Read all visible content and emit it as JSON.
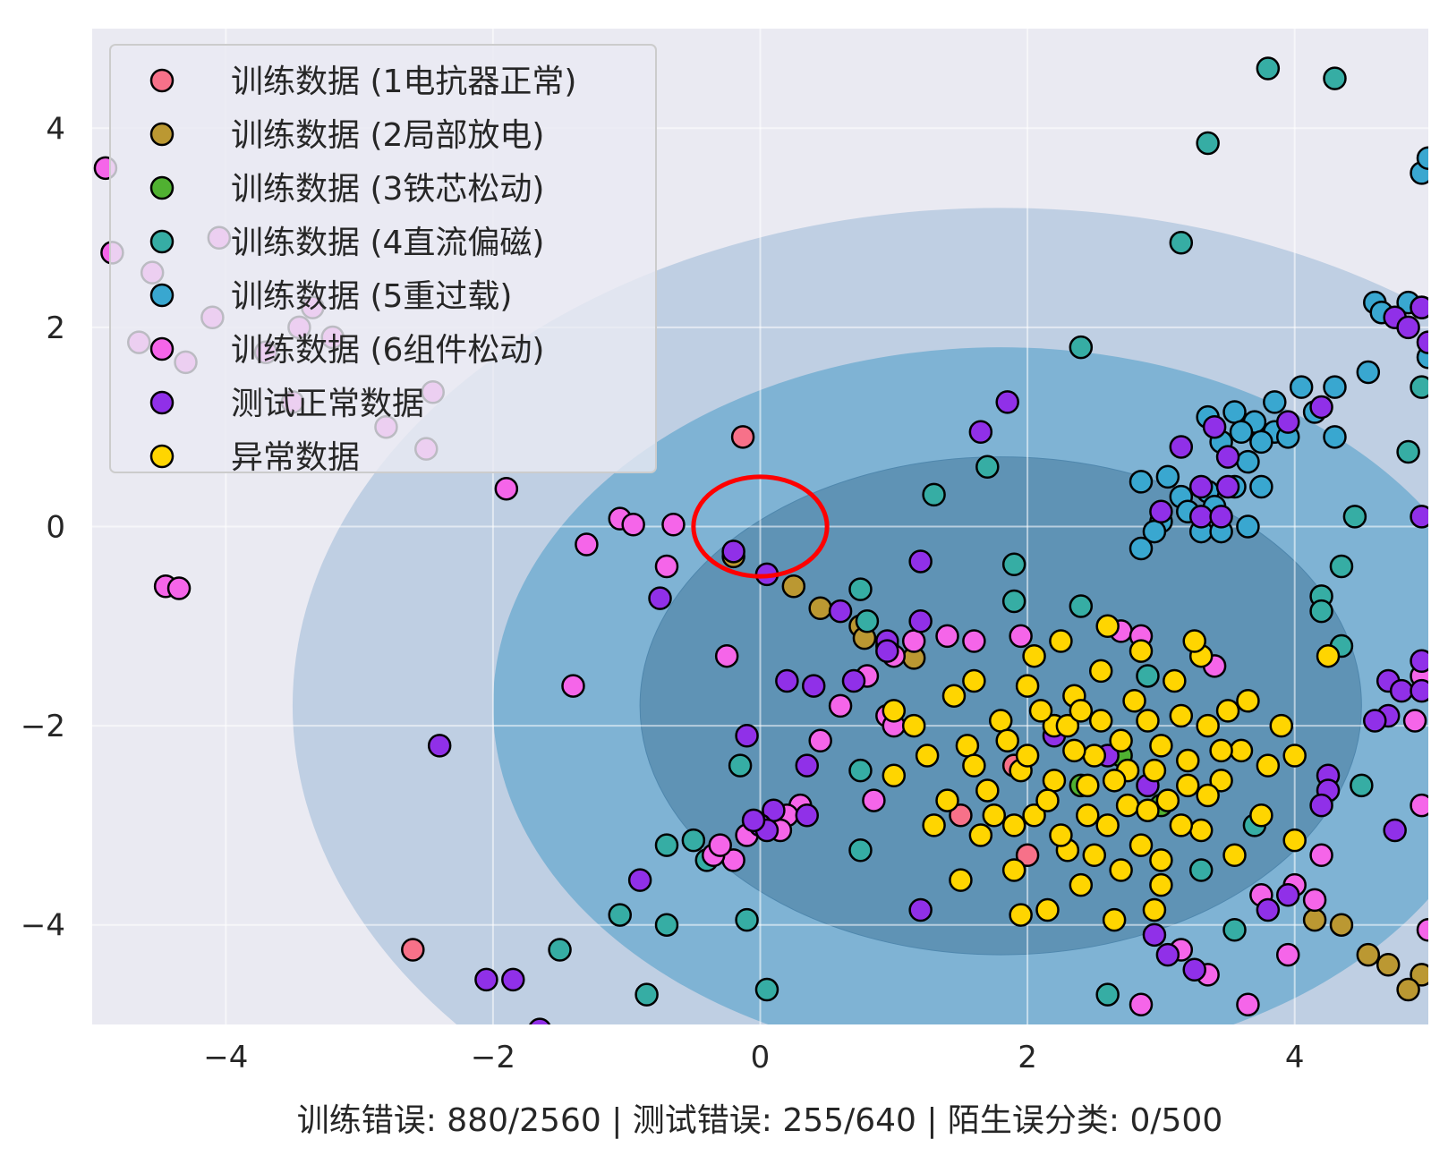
{
  "chart_data": {
    "type": "scatter",
    "title": "",
    "xlabel": "训练错误: 880/2560 | 测试错误: 255/640 | 陌生误分类: 0/500",
    "ylabel": "",
    "xlim": [
      -5,
      5
    ],
    "ylim": [
      -5,
      5
    ],
    "xticks": [
      -4,
      -2,
      0,
      2,
      4
    ],
    "yticks": [
      -4,
      -2,
      0,
      2,
      4
    ],
    "xtick_labels": [
      "−4",
      "−2",
      "0",
      "2",
      "4"
    ],
    "ytick_labels": [
      "−4",
      "−2",
      "0",
      "2",
      "4"
    ],
    "grid": true,
    "legend_position": "top-left",
    "background_color": "#eaeaf2",
    "decision_contours": {
      "center": [
        1.8,
        -1.8
      ],
      "levels": [
        {
          "rx": 5.3,
          "ry": 5.0,
          "color": "#bfcfe3"
        },
        {
          "rx": 3.8,
          "ry": 3.6,
          "color": "#7fb3d4"
        },
        {
          "rx": 2.7,
          "ry": 2.5,
          "color": "#5f93b5"
        }
      ]
    },
    "highlight_circle": {
      "center": [
        0,
        0
      ],
      "rx": 0.5,
      "ry": 0.5,
      "color": "#ff0000"
    },
    "series": [
      {
        "name": "训练数据 (1电抗器正常)",
        "color": "#f77189",
        "points": [
          [
            -0.13,
            0.9
          ],
          [
            -2.6,
            -4.25
          ],
          [
            1.5,
            -2.9
          ],
          [
            2.0,
            -3.3
          ],
          [
            1.9,
            -2.4
          ]
        ]
      },
      {
        "name": "训练数据 (2局部放电)",
        "color": "#bb9832",
        "points": [
          [
            -0.2,
            -0.3
          ],
          [
            0.25,
            -0.6
          ],
          [
            0.45,
            -0.82
          ],
          [
            0.75,
            -1.0
          ],
          [
            0.78,
            -1.12
          ],
          [
            0.95,
            -1.2
          ],
          [
            1.15,
            -1.32
          ],
          [
            4.15,
            -3.95
          ],
          [
            4.35,
            -4.0
          ],
          [
            4.55,
            -4.3
          ],
          [
            4.7,
            -4.4
          ],
          [
            4.95,
            -4.5
          ],
          [
            4.85,
            -4.65
          ]
        ]
      },
      {
        "name": "训练数据 (3铁芯松动)",
        "color": "#50b131",
        "points": [
          [
            2.2,
            -2.0
          ],
          [
            2.4,
            -2.6
          ],
          [
            2.7,
            -2.3
          ],
          [
            3.0,
            -2.8
          ]
        ]
      },
      {
        "name": "训练数据 (4直流偏磁)",
        "color": "#36ada4",
        "points": [
          [
            3.8,
            4.6
          ],
          [
            4.3,
            4.5
          ],
          [
            3.35,
            3.85
          ],
          [
            3.15,
            2.85
          ],
          [
            2.4,
            1.8
          ],
          [
            1.7,
            0.6
          ],
          [
            1.3,
            0.32
          ],
          [
            1.9,
            -0.38
          ],
          [
            0.75,
            -0.63
          ],
          [
            0.8,
            -0.95
          ],
          [
            1.9,
            -0.75
          ],
          [
            2.4,
            -0.8
          ],
          [
            4.2,
            -0.7
          ],
          [
            4.2,
            -0.85
          ],
          [
            4.35,
            -0.4
          ],
          [
            4.35,
            -1.2
          ],
          [
            4.45,
            0.1
          ],
          [
            4.85,
            0.75
          ],
          [
            4.95,
            1.4
          ],
          [
            -0.7,
            -3.2
          ],
          [
            -0.5,
            -3.15
          ],
          [
            -0.4,
            -3.35
          ],
          [
            -0.15,
            -2.4
          ],
          [
            -0.1,
            -3.95
          ],
          [
            -0.7,
            -4.0
          ],
          [
            -1.05,
            -3.9
          ],
          [
            -0.85,
            -4.7
          ],
          [
            -1.5,
            -4.25
          ],
          [
            0.05,
            -4.65
          ],
          [
            0.75,
            -2.45
          ],
          [
            0.75,
            -3.25
          ],
          [
            2.6,
            -4.7
          ],
          [
            3.55,
            -4.05
          ],
          [
            4.5,
            -2.6
          ],
          [
            3.3,
            -3.45
          ],
          [
            2.9,
            -1.5
          ],
          [
            3.7,
            -3.0
          ]
        ]
      },
      {
        "name": "训练数据 (5重过载)",
        "color": "#39a7d0",
        "points": [
          [
            4.95,
            3.55
          ],
          [
            5.0,
            3.7
          ],
          [
            4.6,
            2.25
          ],
          [
            4.65,
            2.15
          ],
          [
            4.85,
            2.25
          ],
          [
            4.95,
            2.2
          ],
          [
            5.0,
            1.7
          ],
          [
            4.55,
            1.55
          ],
          [
            4.05,
            1.4
          ],
          [
            4.15,
            1.15
          ],
          [
            4.3,
            1.4
          ],
          [
            4.3,
            0.9
          ],
          [
            3.55,
            1.15
          ],
          [
            3.35,
            1.1
          ],
          [
            3.85,
            1.25
          ],
          [
            3.7,
            1.05
          ],
          [
            3.6,
            0.95
          ],
          [
            3.45,
            0.85
          ],
          [
            3.65,
            0.65
          ],
          [
            3.85,
            0.95
          ],
          [
            3.95,
            0.9
          ],
          [
            3.75,
            0.85
          ],
          [
            2.85,
            0.45
          ],
          [
            3.05,
            0.5
          ],
          [
            3.15,
            0.3
          ],
          [
            3.35,
            0.35
          ],
          [
            3.55,
            0.4
          ],
          [
            3.75,
            0.4
          ],
          [
            3.0,
            0.05
          ],
          [
            2.95,
            -0.05
          ],
          [
            3.2,
            0.15
          ],
          [
            3.3,
            -0.05
          ],
          [
            3.45,
            -0.05
          ],
          [
            3.65,
            0.0
          ],
          [
            3.4,
            0.2
          ],
          [
            2.85,
            -0.22
          ]
        ]
      },
      {
        "name": "训练数据 (6组件松动)",
        "color": "#f565e9",
        "points": [
          [
            -4.9,
            3.6
          ],
          [
            -4.85,
            2.75
          ],
          [
            -4.55,
            2.55
          ],
          [
            -4.05,
            2.9
          ],
          [
            -4.1,
            2.1
          ],
          [
            -3.45,
            2.0
          ],
          [
            -3.35,
            2.2
          ],
          [
            -4.65,
            1.85
          ],
          [
            -3.5,
            1.25
          ],
          [
            -3.7,
            1.75
          ],
          [
            -3.2,
            1.9
          ],
          [
            -4.3,
            1.65
          ],
          [
            -2.8,
            1.0
          ],
          [
            -2.45,
            1.35
          ],
          [
            -2.5,
            0.78
          ],
          [
            -1.9,
            0.38
          ],
          [
            -1.05,
            0.08
          ],
          [
            -0.95,
            0.02
          ],
          [
            -0.65,
            0.02
          ],
          [
            -0.7,
            -0.4
          ],
          [
            -1.3,
            -0.18
          ],
          [
            -4.45,
            -0.6
          ],
          [
            -4.35,
            -0.62
          ],
          [
            -1.4,
            -1.6
          ],
          [
            -0.25,
            -1.3
          ],
          [
            0.45,
            -2.15
          ],
          [
            0.6,
            -1.8
          ],
          [
            0.8,
            -1.5
          ],
          [
            1.15,
            -1.15
          ],
          [
            1.0,
            -1.3
          ],
          [
            1.4,
            -1.1
          ],
          [
            1.6,
            -1.15
          ],
          [
            1.95,
            -1.1
          ],
          [
            0.95,
            -1.9
          ],
          [
            1.0,
            -2.0
          ],
          [
            0.85,
            -2.75
          ],
          [
            0.3,
            -2.8
          ],
          [
            0.2,
            -2.9
          ],
          [
            0.15,
            -3.05
          ],
          [
            -0.1,
            -3.1
          ],
          [
            -0.2,
            -3.35
          ],
          [
            -0.35,
            -3.3
          ],
          [
            -0.3,
            -3.2
          ],
          [
            3.15,
            -4.25
          ],
          [
            3.35,
            -4.5
          ],
          [
            3.65,
            -4.8
          ],
          [
            3.95,
            -4.3
          ],
          [
            3.75,
            -3.7
          ],
          [
            4.0,
            -3.6
          ],
          [
            4.2,
            -3.3
          ],
          [
            4.15,
            -3.75
          ],
          [
            4.9,
            -1.95
          ],
          [
            4.95,
            -2.8
          ],
          [
            5.0,
            -4.05
          ],
          [
            4.95,
            -1.5
          ],
          [
            2.85,
            -4.8
          ],
          [
            2.7,
            -1.05
          ],
          [
            2.85,
            -1.1
          ],
          [
            3.4,
            -1.4
          ]
        ]
      },
      {
        "name": "测试正常数据",
        "color": "#9030e8",
        "points": [
          [
            1.85,
            1.25
          ],
          [
            1.65,
            0.95
          ],
          [
            -0.2,
            -0.25
          ],
          [
            0.05,
            -0.48
          ],
          [
            0.6,
            -0.85
          ],
          [
            1.2,
            -0.35
          ],
          [
            1.2,
            -0.95
          ],
          [
            0.95,
            -1.15
          ],
          [
            0.95,
            -1.25
          ],
          [
            0.7,
            -1.55
          ],
          [
            0.4,
            -1.6
          ],
          [
            0.2,
            -1.55
          ],
          [
            -0.1,
            -2.1
          ],
          [
            -0.75,
            -0.72
          ],
          [
            0.35,
            -2.4
          ],
          [
            0.35,
            -2.9
          ],
          [
            0.1,
            -2.85
          ],
          [
            0.0,
            -3.0
          ],
          [
            0.05,
            -3.05
          ],
          [
            -0.05,
            -2.95
          ],
          [
            -0.9,
            -3.55
          ],
          [
            -2.4,
            -2.2
          ],
          [
            -2.05,
            -4.55
          ],
          [
            -1.85,
            -4.55
          ],
          [
            -1.65,
            -5.05
          ],
          [
            1.2,
            -3.85
          ],
          [
            2.95,
            -4.1
          ],
          [
            3.05,
            -4.3
          ],
          [
            3.25,
            -4.45
          ],
          [
            3.8,
            -3.85
          ],
          [
            3.95,
            -3.7
          ],
          [
            4.25,
            -2.5
          ],
          [
            4.25,
            -2.65
          ],
          [
            4.2,
            -2.8
          ],
          [
            4.75,
            -3.05
          ],
          [
            4.7,
            -1.55
          ],
          [
            4.8,
            -1.65
          ],
          [
            4.7,
            -1.9
          ],
          [
            4.6,
            -1.95
          ],
          [
            3.15,
            0.8
          ],
          [
            3.4,
            1.0
          ],
          [
            3.5,
            0.7
          ],
          [
            3.3,
            0.4
          ],
          [
            3.5,
            0.4
          ],
          [
            3.0,
            0.15
          ],
          [
            3.3,
            0.1
          ],
          [
            3.45,
            0.1
          ],
          [
            4.2,
            1.2
          ],
          [
            3.95,
            1.05
          ],
          [
            4.75,
            2.1
          ],
          [
            4.85,
            2.0
          ],
          [
            4.95,
            2.2
          ],
          [
            5.0,
            1.85
          ],
          [
            4.95,
            0.1
          ],
          [
            4.95,
            -1.35
          ],
          [
            4.95,
            -1.65
          ],
          [
            2.2,
            -2.1
          ],
          [
            2.6,
            -2.3
          ],
          [
            2.9,
            -2.6
          ]
        ]
      },
      {
        "name": "异常数据",
        "color": "#ffd500",
        "points": [
          [
            2.5,
            -2.3
          ],
          [
            2.45,
            -2.6
          ],
          [
            2.2,
            -2.0
          ],
          [
            2.75,
            -2.45
          ],
          [
            2.9,
            -1.95
          ],
          [
            3.05,
            -2.75
          ],
          [
            1.95,
            -2.45
          ],
          [
            2.6,
            -3.0
          ],
          [
            2.35,
            -1.7
          ],
          [
            3.2,
            -2.35
          ],
          [
            1.8,
            -1.95
          ],
          [
            2.05,
            -2.9
          ],
          [
            2.85,
            -3.2
          ],
          [
            3.35,
            -2.0
          ],
          [
            2.0,
            -1.6
          ],
          [
            1.7,
            -2.65
          ],
          [
            3.45,
            -2.55
          ],
          [
            2.55,
            -1.45
          ],
          [
            3.1,
            -1.55
          ],
          [
            1.55,
            -2.2
          ],
          [
            2.3,
            -3.25
          ],
          [
            3.3,
            -3.05
          ],
          [
            1.65,
            -3.1
          ],
          [
            1.9,
            -3.45
          ],
          [
            2.7,
            -3.45
          ],
          [
            3.5,
            -1.85
          ],
          [
            1.45,
            -1.7
          ],
          [
            2.05,
            -1.3
          ],
          [
            3.3,
            -1.3
          ],
          [
            3.6,
            -2.25
          ],
          [
            1.4,
            -2.75
          ],
          [
            2.4,
            -3.6
          ],
          [
            3.0,
            -3.6
          ],
          [
            1.6,
            -1.55
          ],
          [
            3.65,
            -1.75
          ],
          [
            1.25,
            -2.3
          ],
          [
            2.25,
            -1.15
          ],
          [
            2.85,
            -1.25
          ],
          [
            3.55,
            -3.3
          ],
          [
            1.5,
            -3.55
          ],
          [
            2.15,
            -3.85
          ],
          [
            2.95,
            -3.85
          ],
          [
            1.3,
            -3.0
          ],
          [
            3.8,
            -2.4
          ],
          [
            3.75,
            -2.9
          ],
          [
            1.15,
            -2.0
          ],
          [
            2.6,
            -1.0
          ],
          [
            3.25,
            -1.15
          ],
          [
            1.95,
            -3.9
          ],
          [
            2.65,
            -3.95
          ],
          [
            1.0,
            -2.5
          ],
          [
            3.9,
            -2.0
          ],
          [
            3.0,
            -2.2
          ],
          [
            2.2,
            -2.55
          ],
          [
            2.7,
            -2.15
          ],
          [
            2.45,
            -2.9
          ],
          [
            3.15,
            -3.0
          ],
          [
            1.85,
            -2.15
          ],
          [
            2.35,
            -2.25
          ],
          [
            2.95,
            -2.45
          ],
          [
            2.55,
            -1.95
          ],
          [
            2.15,
            -2.75
          ],
          [
            3.35,
            -2.7
          ],
          [
            2.75,
            -2.8
          ],
          [
            1.75,
            -2.9
          ],
          [
            2.3,
            -2.0
          ],
          [
            2.8,
            -1.75
          ],
          [
            3.15,
            -1.9
          ],
          [
            2.0,
            -2.3
          ],
          [
            2.5,
            -3.3
          ],
          [
            3.0,
            -3.35
          ],
          [
            1.6,
            -2.4
          ],
          [
            2.1,
            -1.85
          ],
          [
            3.45,
            -2.25
          ],
          [
            2.65,
            -2.55
          ],
          [
            2.4,
            -1.85
          ],
          [
            2.9,
            -2.85
          ],
          [
            1.9,
            -3.0
          ],
          [
            3.2,
            -2.6
          ],
          [
            2.25,
            -3.1
          ],
          [
            4.0,
            -3.15
          ],
          [
            4.25,
            -1.3
          ],
          [
            4.0,
            -2.3
          ],
          [
            1.0,
            -1.85
          ]
        ]
      }
    ]
  }
}
